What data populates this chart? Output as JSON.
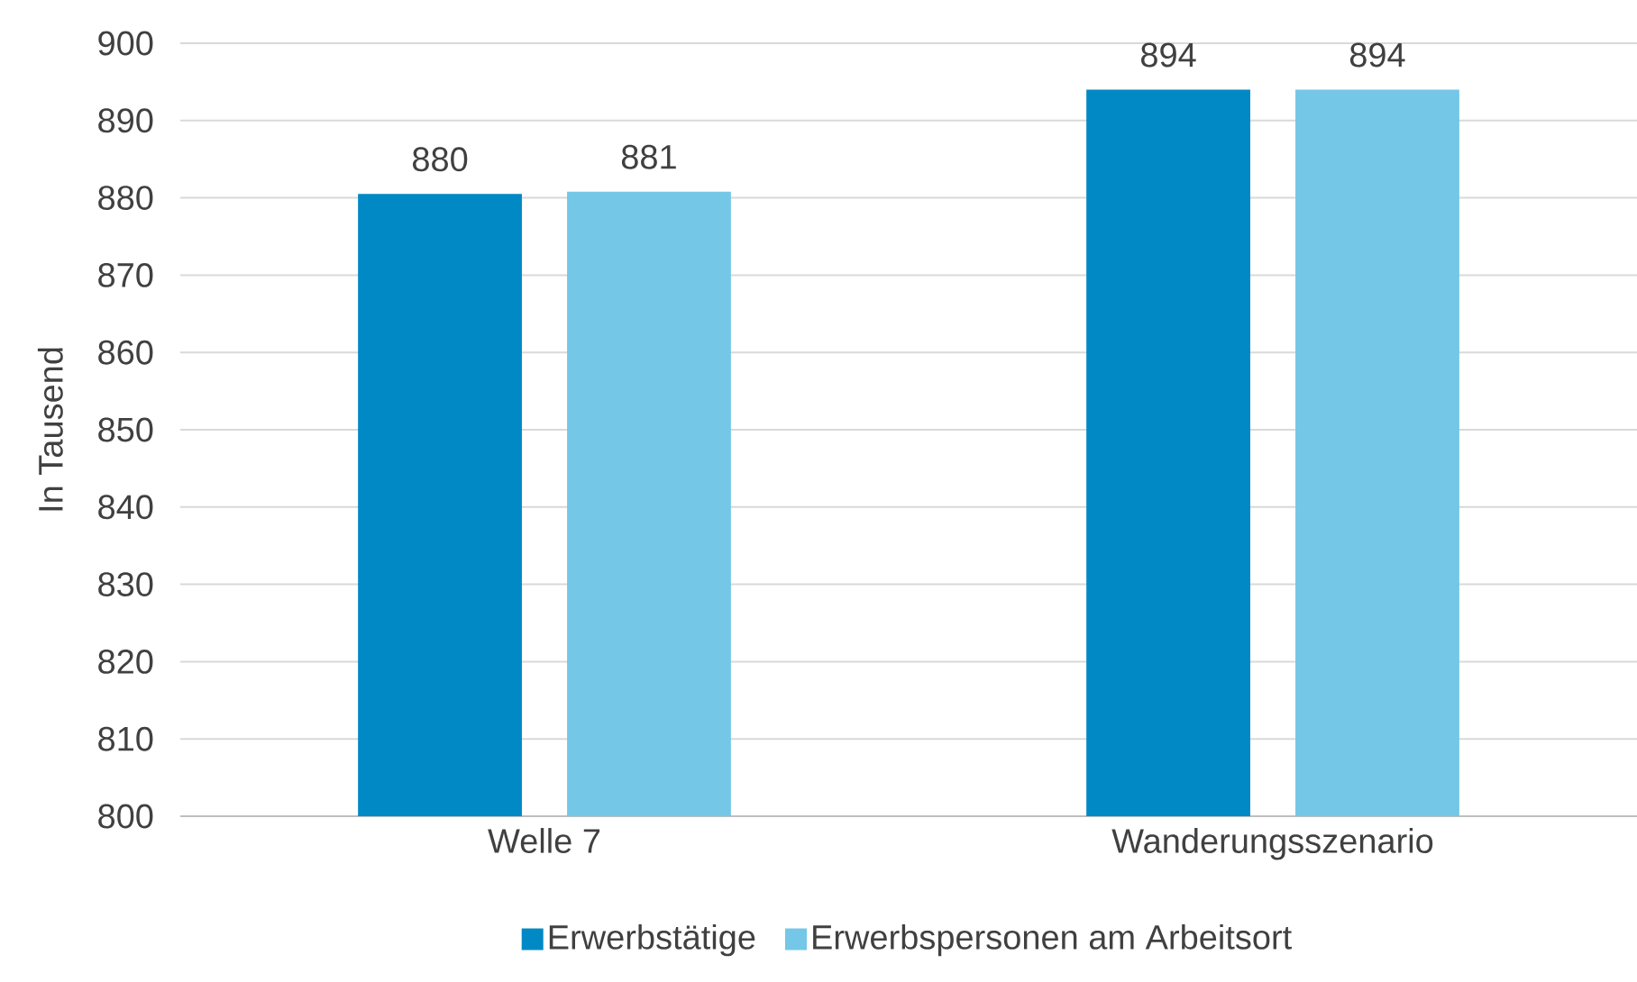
{
  "chart_data": {
    "type": "bar",
    "ylabel": "In Tausend",
    "categories": [
      "Welle 7",
      "Wanderungsszenario"
    ],
    "series": [
      {
        "name": "Erwerbstätige",
        "color": "#0089c4",
        "values": [
          880.5,
          894
        ],
        "value_labels": [
          "880",
          "894"
        ]
      },
      {
        "name": "Erwerbspersonen am Arbeitsort",
        "color": "#74c7e6",
        "values": [
          880.8,
          894
        ],
        "value_labels": [
          "881",
          "894"
        ]
      }
    ],
    "ylim": [
      800,
      900
    ],
    "yticks": [
      800,
      810,
      820,
      830,
      840,
      850,
      860,
      870,
      880,
      890,
      900
    ],
    "grid": "y",
    "legend": "bottom"
  }
}
